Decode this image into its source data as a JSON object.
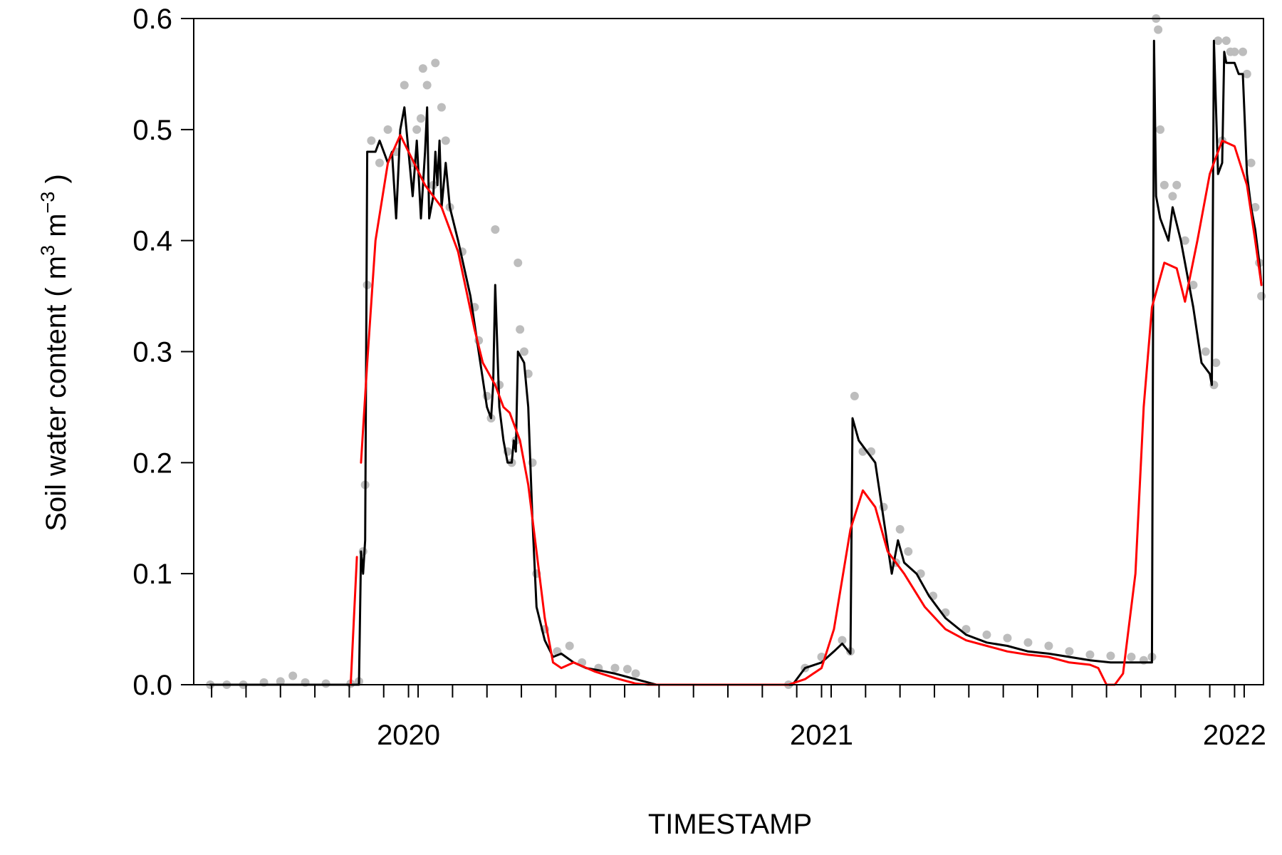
{
  "chart_data": {
    "type": "line",
    "xlabel": "TIMESTAMP",
    "ylabel": {
      "prefix": "Soil water content ( m",
      "exp1": "3",
      "mid": " m",
      "exp2": "−3",
      "suffix": " )"
    },
    "xlim": [
      2019.48,
      2022.07
    ],
    "ylim": [
      0,
      0.6
    ],
    "x_tick_labels": [
      {
        "x": 2020,
        "label": "2020"
      },
      {
        "x": 2021,
        "label": "2021"
      },
      {
        "x": 2022,
        "label": "2022"
      }
    ],
    "x_minor_tick_interval": 0.0833333,
    "y_ticks": [
      0.0,
      0.1,
      0.2,
      0.3,
      0.4,
      0.5,
      0.6
    ],
    "y_tick_labels": [
      "0.0",
      "0.1",
      "0.2",
      "0.3",
      "0.4",
      "0.5",
      "0.6"
    ],
    "grid": false,
    "series": [
      {
        "role": "raw-points",
        "style": "points",
        "color": "#bdbdbd",
        "points": [
          [
            2019.52,
            0.0
          ],
          [
            2019.56,
            0.0
          ],
          [
            2019.6,
            0.0
          ],
          [
            2019.65,
            0.002
          ],
          [
            2019.69,
            0.003
          ],
          [
            2019.72,
            0.008
          ],
          [
            2019.75,
            0.002
          ],
          [
            2019.8,
            0.001
          ],
          [
            2019.86,
            0.001
          ],
          [
            2019.88,
            0.003
          ],
          [
            2019.89,
            0.12
          ],
          [
            2019.895,
            0.18
          ],
          [
            2019.9,
            0.36
          ],
          [
            2019.91,
            0.49
          ],
          [
            2019.93,
            0.47
          ],
          [
            2019.95,
            0.5
          ],
          [
            2019.97,
            0.48
          ],
          [
            2019.99,
            0.54
          ],
          [
            2020.01,
            0.47
          ],
          [
            2020.02,
            0.5
          ],
          [
            2020.03,
            0.51
          ],
          [
            2020.035,
            0.555
          ],
          [
            2020.045,
            0.54
          ],
          [
            2020.06,
            0.45
          ],
          [
            2020.065,
            0.56
          ],
          [
            2020.08,
            0.52
          ],
          [
            2020.09,
            0.49
          ],
          [
            2020.1,
            0.43
          ],
          [
            2020.13,
            0.39
          ],
          [
            2020.16,
            0.34
          ],
          [
            2020.17,
            0.31
          ],
          [
            2020.19,
            0.26
          ],
          [
            2020.2,
            0.24
          ],
          [
            2020.21,
            0.41
          ],
          [
            2020.22,
            0.27
          ],
          [
            2020.24,
            0.21
          ],
          [
            2020.25,
            0.2
          ],
          [
            2020.26,
            0.22
          ],
          [
            2020.265,
            0.38
          ],
          [
            2020.27,
            0.32
          ],
          [
            2020.28,
            0.3
          ],
          [
            2020.29,
            0.28
          ],
          [
            2020.3,
            0.2
          ],
          [
            2020.31,
            0.1
          ],
          [
            2020.33,
            0.05
          ],
          [
            2020.36,
            0.03
          ],
          [
            2020.39,
            0.035
          ],
          [
            2020.42,
            0.02
          ],
          [
            2020.46,
            0.015
          ],
          [
            2020.5,
            0.015
          ],
          [
            2020.53,
            0.014
          ],
          [
            2020.55,
            0.01
          ],
          [
            2020.92,
            0.0
          ],
          [
            2020.96,
            0.015
          ],
          [
            2021.0,
            0.025
          ],
          [
            2021.05,
            0.04
          ],
          [
            2021.07,
            0.03
          ],
          [
            2021.08,
            0.26
          ],
          [
            2021.1,
            0.21
          ],
          [
            2021.12,
            0.21
          ],
          [
            2021.15,
            0.16
          ],
          [
            2021.18,
            0.11
          ],
          [
            2021.19,
            0.14
          ],
          [
            2021.21,
            0.12
          ],
          [
            2021.24,
            0.1
          ],
          [
            2021.27,
            0.08
          ],
          [
            2021.3,
            0.065
          ],
          [
            2021.35,
            0.05
          ],
          [
            2021.4,
            0.045
          ],
          [
            2021.45,
            0.042
          ],
          [
            2021.5,
            0.038
          ],
          [
            2021.55,
            0.035
          ],
          [
            2021.6,
            0.03
          ],
          [
            2021.65,
            0.027
          ],
          [
            2021.7,
            0.026
          ],
          [
            2021.75,
            0.025
          ],
          [
            2021.78,
            0.022
          ],
          [
            2021.8,
            0.025
          ],
          [
            2021.81,
            0.6
          ],
          [
            2021.815,
            0.59
          ],
          [
            2021.82,
            0.5
          ],
          [
            2021.83,
            0.45
          ],
          [
            2021.85,
            0.44
          ],
          [
            2021.86,
            0.45
          ],
          [
            2021.88,
            0.4
          ],
          [
            2021.9,
            0.36
          ],
          [
            2021.93,
            0.3
          ],
          [
            2021.95,
            0.27
          ],
          [
            2021.955,
            0.29
          ],
          [
            2021.96,
            0.58
          ],
          [
            2021.97,
            0.49
          ],
          [
            2021.98,
            0.58
          ],
          [
            2021.99,
            0.57
          ],
          [
            2022.0,
            0.57
          ],
          [
            2022.02,
            0.57
          ],
          [
            2022.03,
            0.55
          ],
          [
            2022.04,
            0.47
          ],
          [
            2022.05,
            0.43
          ],
          [
            2022.06,
            0.38
          ],
          [
            2022.065,
            0.35
          ]
        ]
      },
      {
        "role": "observed-line",
        "style": "line",
        "color": "#000000",
        "points": [
          [
            2019.52,
            0.0
          ],
          [
            2019.7,
            0.0
          ],
          [
            2019.88,
            0.0
          ],
          [
            2019.885,
            0.12
          ],
          [
            2019.89,
            0.1
          ],
          [
            2019.895,
            0.13
          ],
          [
            2019.9,
            0.48
          ],
          [
            2019.92,
            0.48
          ],
          [
            2019.93,
            0.49
          ],
          [
            2019.95,
            0.47
          ],
          [
            2019.96,
            0.48
          ],
          [
            2019.97,
            0.42
          ],
          [
            2019.98,
            0.5
          ],
          [
            2019.99,
            0.52
          ],
          [
            2020.0,
            0.48
          ],
          [
            2020.01,
            0.44
          ],
          [
            2020.02,
            0.49
          ],
          [
            2020.03,
            0.42
          ],
          [
            2020.04,
            0.48
          ],
          [
            2020.045,
            0.52
          ],
          [
            2020.05,
            0.42
          ],
          [
            2020.06,
            0.44
          ],
          [
            2020.065,
            0.48
          ],
          [
            2020.07,
            0.45
          ],
          [
            2020.075,
            0.49
          ],
          [
            2020.08,
            0.43
          ],
          [
            2020.09,
            0.47
          ],
          [
            2020.1,
            0.43
          ],
          [
            2020.12,
            0.4
          ],
          [
            2020.15,
            0.35
          ],
          [
            2020.17,
            0.3
          ],
          [
            2020.19,
            0.25
          ],
          [
            2020.2,
            0.24
          ],
          [
            2020.205,
            0.27
          ],
          [
            2020.21,
            0.36
          ],
          [
            2020.22,
            0.25
          ],
          [
            2020.23,
            0.22
          ],
          [
            2020.24,
            0.2
          ],
          [
            2020.25,
            0.2
          ],
          [
            2020.255,
            0.22
          ],
          [
            2020.26,
            0.21
          ],
          [
            2020.265,
            0.3
          ],
          [
            2020.28,
            0.29
          ],
          [
            2020.29,
            0.25
          ],
          [
            2020.3,
            0.15
          ],
          [
            2020.31,
            0.07
          ],
          [
            2020.33,
            0.04
          ],
          [
            2020.35,
            0.025
          ],
          [
            2020.37,
            0.028
          ],
          [
            2020.4,
            0.02
          ],
          [
            2020.43,
            0.015
          ],
          [
            2020.46,
            0.013
          ],
          [
            2020.5,
            0.01
          ],
          [
            2020.55,
            0.005
          ],
          [
            2020.6,
            0.0
          ],
          [
            2020.93,
            0.0
          ],
          [
            2020.96,
            0.015
          ],
          [
            2021.0,
            0.02
          ],
          [
            2021.03,
            0.03
          ],
          [
            2021.05,
            0.037
          ],
          [
            2021.07,
            0.028
          ],
          [
            2021.075,
            0.24
          ],
          [
            2021.09,
            0.22
          ],
          [
            2021.11,
            0.21
          ],
          [
            2021.13,
            0.2
          ],
          [
            2021.15,
            0.15
          ],
          [
            2021.17,
            0.1
          ],
          [
            2021.18,
            0.12
          ],
          [
            2021.185,
            0.13
          ],
          [
            2021.2,
            0.11
          ],
          [
            2021.23,
            0.1
          ],
          [
            2021.26,
            0.08
          ],
          [
            2021.3,
            0.06
          ],
          [
            2021.35,
            0.045
          ],
          [
            2021.4,
            0.038
          ],
          [
            2021.45,
            0.035
          ],
          [
            2021.5,
            0.03
          ],
          [
            2021.55,
            0.028
          ],
          [
            2021.6,
            0.025
          ],
          [
            2021.65,
            0.022
          ],
          [
            2021.7,
            0.02
          ],
          [
            2021.75,
            0.02
          ],
          [
            2021.8,
            0.02
          ],
          [
            2021.805,
            0.58
          ],
          [
            2021.81,
            0.44
          ],
          [
            2021.82,
            0.42
          ],
          [
            2021.84,
            0.4
          ],
          [
            2021.85,
            0.43
          ],
          [
            2021.87,
            0.4
          ],
          [
            2021.9,
            0.34
          ],
          [
            2021.92,
            0.29
          ],
          [
            2021.94,
            0.28
          ],
          [
            2021.945,
            0.27
          ],
          [
            2021.95,
            0.58
          ],
          [
            2021.96,
            0.46
          ],
          [
            2021.97,
            0.47
          ],
          [
            2021.975,
            0.57
          ],
          [
            2021.98,
            0.56
          ],
          [
            2022.0,
            0.56
          ],
          [
            2022.01,
            0.55
          ],
          [
            2022.02,
            0.55
          ],
          [
            2022.03,
            0.46
          ],
          [
            2022.04,
            0.43
          ],
          [
            2022.05,
            0.41
          ],
          [
            2022.06,
            0.38
          ],
          [
            2022.065,
            0.36
          ]
        ]
      },
      {
        "role": "smoothed-line-a",
        "style": "line",
        "color": "#ff0000",
        "points": [
          [
            2019.86,
            0.0
          ],
          [
            2019.875,
            0.115
          ]
        ]
      },
      {
        "role": "smoothed-line-b",
        "style": "line",
        "color": "#ff0000",
        "points": [
          [
            2019.885,
            0.2
          ],
          [
            2019.9,
            0.29
          ],
          [
            2019.92,
            0.4
          ],
          [
            2019.95,
            0.47
          ],
          [
            2019.98,
            0.495
          ],
          [
            2020.0,
            0.48
          ],
          [
            2020.04,
            0.45
          ],
          [
            2020.08,
            0.43
          ],
          [
            2020.12,
            0.39
          ],
          [
            2020.16,
            0.32
          ],
          [
            2020.18,
            0.29
          ],
          [
            2020.21,
            0.27
          ],
          [
            2020.23,
            0.25
          ],
          [
            2020.245,
            0.245
          ],
          [
            2020.25,
            0.24
          ],
          [
            2020.27,
            0.22
          ],
          [
            2020.29,
            0.18
          ],
          [
            2020.31,
            0.12
          ],
          [
            2020.33,
            0.06
          ],
          [
            2020.35,
            0.02
          ],
          [
            2020.37,
            0.015
          ],
          [
            2020.4,
            0.02
          ],
          [
            2020.45,
            0.012
          ],
          [
            2020.5,
            0.006
          ],
          [
            2020.55,
            0.001
          ],
          [
            2020.58,
            0.0
          ],
          [
            2020.92,
            0.0
          ],
          [
            2020.96,
            0.005
          ],
          [
            2021.0,
            0.015
          ],
          [
            2021.03,
            0.05
          ],
          [
            2021.07,
            0.14
          ],
          [
            2021.1,
            0.175
          ],
          [
            2021.13,
            0.16
          ],
          [
            2021.16,
            0.12
          ],
          [
            2021.2,
            0.1
          ],
          [
            2021.25,
            0.07
          ],
          [
            2021.3,
            0.05
          ],
          [
            2021.35,
            0.04
          ],
          [
            2021.4,
            0.035
          ],
          [
            2021.45,
            0.03
          ],
          [
            2021.5,
            0.027
          ],
          [
            2021.55,
            0.025
          ],
          [
            2021.6,
            0.02
          ],
          [
            2021.65,
            0.018
          ],
          [
            2021.67,
            0.015
          ],
          [
            2021.69,
            0.0
          ],
          [
            2021.71,
            0.0
          ],
          [
            2021.73,
            0.01
          ],
          [
            2021.76,
            0.1
          ],
          [
            2021.78,
            0.25
          ],
          [
            2021.8,
            0.34
          ],
          [
            2021.83,
            0.38
          ],
          [
            2021.86,
            0.375
          ],
          [
            2021.88,
            0.345
          ],
          [
            2021.91,
            0.4
          ],
          [
            2021.94,
            0.46
          ],
          [
            2021.97,
            0.49
          ],
          [
            2022.0,
            0.485
          ],
          [
            2022.03,
            0.45
          ],
          [
            2022.05,
            0.4
          ],
          [
            2022.065,
            0.36
          ]
        ]
      }
    ]
  }
}
